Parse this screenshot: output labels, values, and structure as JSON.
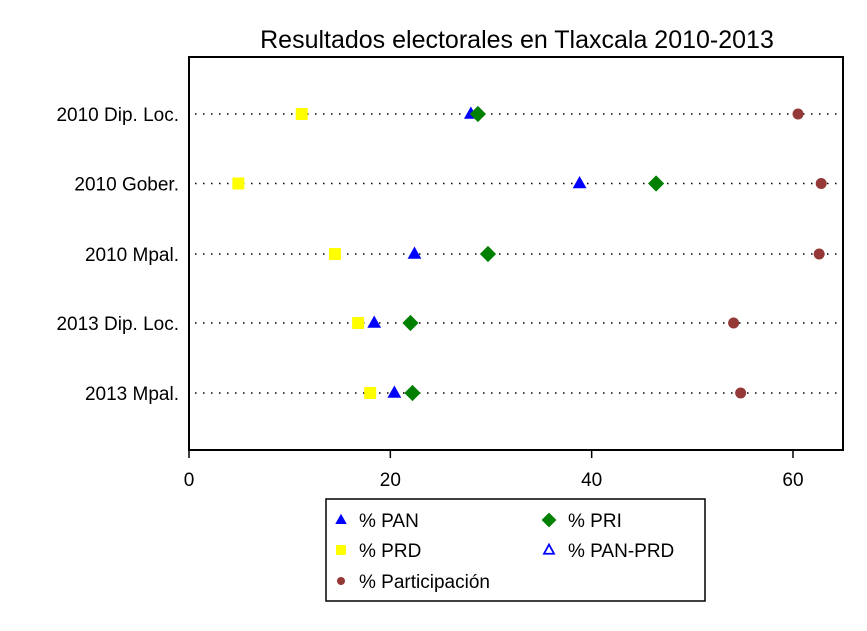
{
  "chart_data": {
    "type": "scatter",
    "title": "Resultados electorales en Tlaxcala 2010-2013",
    "xlabel": "",
    "ylabel": "",
    "xlim": [
      0,
      65
    ],
    "xticks": [
      "0",
      "20",
      "40",
      "60"
    ],
    "xtick_values": [
      0,
      20,
      40,
      60
    ],
    "categories": [
      "2010 Dip. Loc.",
      "2010 Gober.",
      "2010 Mpal.",
      "2013 Dip. Loc.",
      "2013 Mpal."
    ],
    "grid": "dotted horizontal lines per category",
    "legend_position": "bottom",
    "series": [
      {
        "name": "% PAN",
        "marker": "triangle-filled",
        "color": "#0000ff",
        "values": [
          28.0,
          38.8,
          22.4,
          18.4,
          20.4
        ]
      },
      {
        "name": "% PRI",
        "marker": "diamond",
        "color": "#008000",
        "values": [
          28.7,
          46.4,
          29.7,
          22.0,
          22.2
        ]
      },
      {
        "name": "% PRD",
        "marker": "square",
        "color": "#ffff00",
        "values": [
          11.2,
          4.9,
          14.5,
          16.8,
          18.0
        ]
      },
      {
        "name": "% PAN-PRD",
        "marker": "triangle-open",
        "color": "#0000ff",
        "values": [
          null,
          null,
          null,
          null,
          null
        ]
      },
      {
        "name": "% Participación",
        "marker": "circle",
        "color": "#943838",
        "values": [
          60.5,
          62.8,
          62.6,
          54.1,
          54.8
        ]
      }
    ]
  }
}
